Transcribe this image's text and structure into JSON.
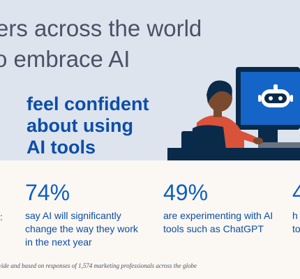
{
  "header": {
    "title_line1": "ers across the world",
    "title_line2": "o embrace AI"
  },
  "highlight": {
    "text_line1": "feel confident",
    "text_line2": "about using",
    "text_line3": "AI tools"
  },
  "stats": [
    {
      "value": "74%",
      "line1": "say AI will significantly",
      "line2": "change the way they work",
      "line3": "in the next year"
    },
    {
      "value": "49%",
      "line1": "are experimenting with AI",
      "line2": "tools such as ChatGPT",
      "line3": ""
    },
    {
      "value": "4",
      "line1": "h",
      "line2": "to",
      "line3": ""
    }
  ],
  "stat_stub": ":",
  "footnote": "wide and based on responses of 1,574 marketing professionals across the globe",
  "colors": {
    "top_bg": "#dde4ee",
    "bottom_bg": "#fbf7f2",
    "accent_blue": "#0b5ec8",
    "dark_navy": "#0a2a4a",
    "shirt_red": "#d9523a"
  },
  "icons": [
    "chatbot-icon"
  ]
}
